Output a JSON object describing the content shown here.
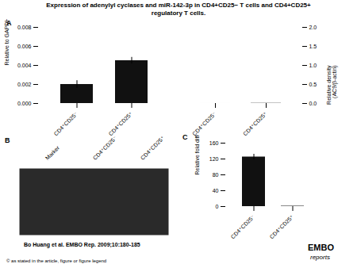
{
  "chart_data": [
    {
      "type": "bar",
      "title": "Expression of adenylyl cyclases and miR-142-3p in CD4+CD25− T cells and CD4+CD25+\nregulatory T cells.",
      "annotations": [
        "A"
      ],
      "categories": [
        "CD4⁺CD25⁻",
        "CD4⁺CD25⁺"
      ],
      "values": [
        0.002,
        0.0045
      ],
      "errors": [
        0.0004,
        0.00035
      ],
      "color": "#111111",
      "ylim": [
        0,
        0.008
      ],
      "yticks": [
        {
          "value": 0,
          "label": "0.000"
        },
        0.002,
        0.004,
        0.006,
        0.008
      ],
      "ylabel": "Relative to GAPDH"
    },
    {
      "type": "bar",
      "categories": [
        "CD4⁺CD25⁻",
        "CD4⁺CD25⁺"
      ],
      "series": [
        {
          "values": [
            0.00015,
            0.0052
          ],
          "errors": [
            3e-05,
            0.00025
          ],
          "color": "#111111",
          "axis": "y2"
        }
      ],
      "y2lim": [
        0,
        2.0
      ],
      "y2ticks": [
        {
          "value": 0,
          "label": "0.0"
        },
        0.5,
        {
          "value": 1,
          "label": "1.0"
        },
        1.5,
        {
          "value": 2,
          "label": "2.0"
        }
      ],
      "y2label": "Relative density\n(AC9/β-actin)"
    },
    {
      "type": "image",
      "annotations": [
        "B"
      ],
      "categories": [
        "Marker",
        "CD4⁺CD25⁻",
        "CD4⁺CD25⁺"
      ],
      "color": "#2a2a2a",
      "tick_labels": "x"
    },
    {
      "type": "bar",
      "annotations": [
        "C"
      ],
      "categories": [
        "CD4⁺CD25⁻",
        "CD4⁺CD25⁺"
      ],
      "values": [
        125,
        1
      ],
      "errors": [
        7,
        0
      ],
      "color": "#111111",
      "ylim": [
        0,
        160
      ],
      "yticks": [
        0,
        40,
        80,
        120,
        160
      ],
      "ylabel": "Relative fold difference"
    },
    {
      "type": "text",
      "annotations": [
        "Bo Huang et al. EMBO Rep. 2009;10:180-185",
        "© as stated in the article, figure or figure legend",
        "EMBO",
        "reports"
      ]
    }
  ]
}
